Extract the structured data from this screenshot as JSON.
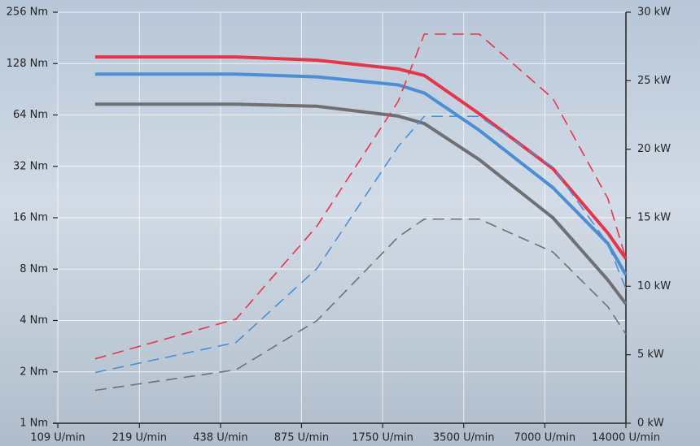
{
  "chart_data": {
    "type": "line",
    "x": [
      150,
      500,
      1000,
      2000,
      2500,
      4000,
      7500,
      12000,
      14000
    ],
    "xscale": "log",
    "xlim": [
      109,
      14000
    ],
    "xticks": [
      {
        "value": 109,
        "label": "109 U/min"
      },
      {
        "value": 219,
        "label": "219 U/min"
      },
      {
        "value": 438,
        "label": "438 U/min"
      },
      {
        "value": 875,
        "label": "875 U/min"
      },
      {
        "value": 1750,
        "label": "1750 U/min"
      },
      {
        "value": 3500,
        "label": "3500 U/min"
      },
      {
        "value": 7000,
        "label": "7000 U/min"
      },
      {
        "value": 14000,
        "label": "14000 U/min"
      }
    ],
    "yscale": "log",
    "ylim": [
      1,
      256
    ],
    "yticks": [
      {
        "value": 1,
        "label": "1 Nm"
      },
      {
        "value": 2,
        "label": "2 Nm"
      },
      {
        "value": 4,
        "label": "4 Nm"
      },
      {
        "value": 8,
        "label": "8 Nm"
      },
      {
        "value": 16,
        "label": "16 Nm"
      },
      {
        "value": 32,
        "label": "32 Nm"
      },
      {
        "value": 64,
        "label": "64 Nm"
      },
      {
        "value": 128,
        "label": "128 Nm"
      },
      {
        "value": 256,
        "label": "256 Nm"
      }
    ],
    "y2lim": [
      0,
      30
    ],
    "y2ticks": [
      {
        "value": 0,
        "label": "0 kW"
      },
      {
        "value": 5,
        "label": "5 kW"
      },
      {
        "value": 10,
        "label": "10 kW"
      },
      {
        "value": 15,
        "label": "15 kW"
      },
      {
        "value": 20,
        "label": "20 kW"
      },
      {
        "value": 25,
        "label": "25 kW"
      },
      {
        "value": 30,
        "label": "30 kW"
      }
    ],
    "grid": true,
    "series": [
      {
        "color": "#e8344a",
        "style": "solid",
        "values": [
          140,
          140,
          134,
          119,
          109,
          65,
          31,
          13,
          9.2
        ]
      },
      {
        "color": "#4a8fd6",
        "style": "solid",
        "values": [
          111,
          111,
          107,
          96,
          86,
          52,
          24,
          11.3,
          7.4
        ]
      },
      {
        "color": "#707074",
        "style": "solid",
        "values": [
          74,
          74,
          72,
          63,
          57,
          35,
          16,
          6.9,
          5.0
        ]
      },
      {
        "color": "#e8344a",
        "style": "dashed",
        "axis": "y2",
        "values": [
          4.7,
          7.6,
          14.4,
          23.5,
          28.4,
          28.4,
          23.7,
          16.4,
          12
        ]
      },
      {
        "color": "#4a8fd6",
        "style": "dashed",
        "axis": "y2",
        "values": [
          3.7,
          5.9,
          11.3,
          20.2,
          22.4,
          22.4,
          18.7,
          13.1,
          9.8
        ]
      },
      {
        "color": "#707074",
        "style": "dashed",
        "axis": "y2",
        "values": [
          2.4,
          3.9,
          7.5,
          13.6,
          14.9,
          14.9,
          12.5,
          8.5,
          6.5
        ]
      }
    ]
  }
}
